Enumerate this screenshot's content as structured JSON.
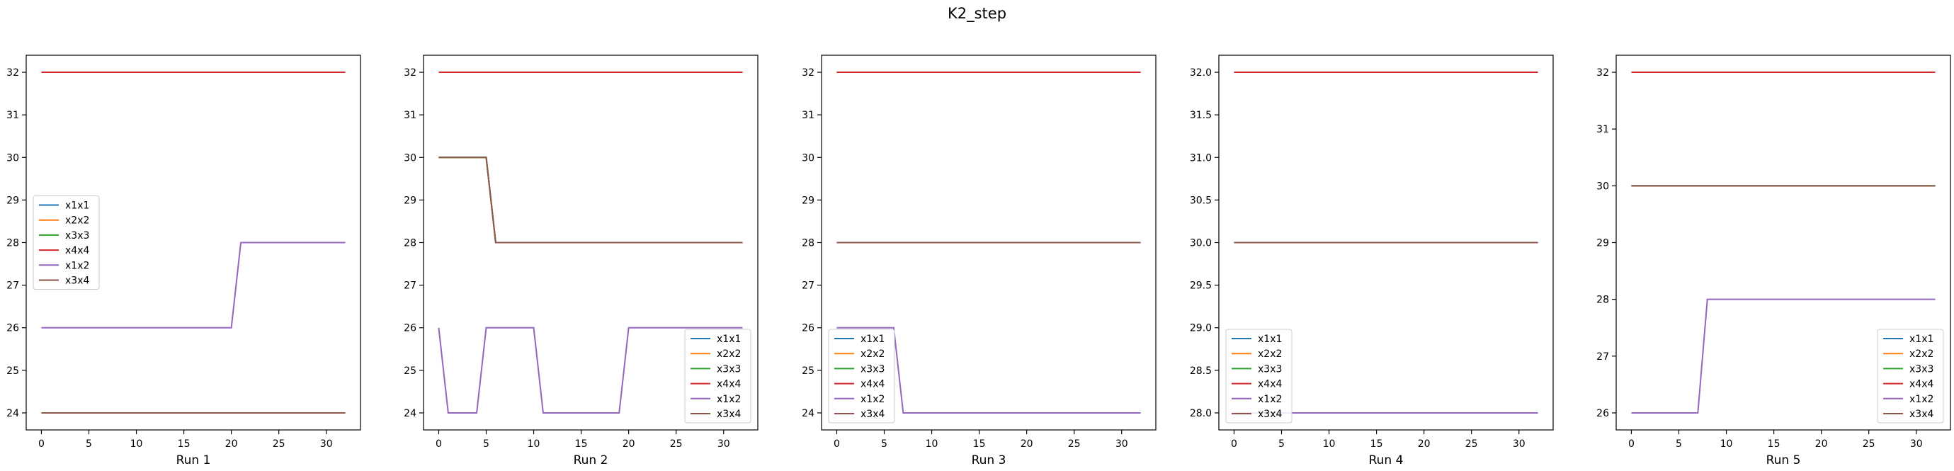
{
  "figure_title": "K2_step",
  "chart_data": [
    {
      "type": "line",
      "xlabel": "Run 1",
      "xlim": [
        -1.6,
        33.6
      ],
      "ylim": [
        23.6,
        32.4
      ],
      "xticks": [
        0,
        5,
        10,
        15,
        20,
        25,
        30
      ],
      "yticks": [
        24,
        25,
        26,
        27,
        28,
        29,
        30,
        31,
        32
      ],
      "ytick_labels": [
        "24",
        "25",
        "26",
        "27",
        "28",
        "29",
        "30",
        "31",
        "32"
      ],
      "legend": "center-left",
      "series": [
        {
          "name": "x1x1",
          "color": "#1f77b4",
          "points": [
            [
              0,
              24
            ],
            [
              32,
              24
            ]
          ]
        },
        {
          "name": "x2x2",
          "color": "#ff7f0e",
          "points": [
            [
              0,
              24
            ],
            [
              32,
              24
            ]
          ]
        },
        {
          "name": "x3x3",
          "color": "#2ca02c",
          "points": [
            [
              0,
              24
            ],
            [
              32,
              24
            ]
          ]
        },
        {
          "name": "x4x4",
          "color": "#d62728",
          "points": [
            [
              0,
              32
            ],
            [
              32,
              32
            ]
          ]
        },
        {
          "name": "x1x2",
          "color": "#9467bd",
          "points": [
            [
              0,
              26
            ],
            [
              20,
              26
            ],
            [
              21,
              28
            ],
            [
              32,
              28
            ]
          ]
        },
        {
          "name": "x3x4",
          "color": "#8c564b",
          "points": [
            [
              0,
              24
            ],
            [
              32,
              24
            ]
          ]
        }
      ]
    },
    {
      "type": "line",
      "xlabel": "Run 2",
      "xlim": [
        -1.6,
        33.6
      ],
      "ylim": [
        23.6,
        32.4
      ],
      "xticks": [
        0,
        5,
        10,
        15,
        20,
        25,
        30
      ],
      "yticks": [
        24,
        25,
        26,
        27,
        28,
        29,
        30,
        31,
        32
      ],
      "ytick_labels": [
        "24",
        "25",
        "26",
        "27",
        "28",
        "29",
        "30",
        "31",
        "32"
      ],
      "legend": "lower-right",
      "series": [
        {
          "name": "x1x1",
          "color": "#1f77b4",
          "points": [
            [
              0,
              30
            ],
            [
              5,
              30
            ],
            [
              6,
              28
            ],
            [
              32,
              28
            ]
          ]
        },
        {
          "name": "x2x2",
          "color": "#ff7f0e",
          "points": [
            [
              0,
              30
            ],
            [
              5,
              30
            ],
            [
              6,
              28
            ],
            [
              32,
              28
            ]
          ]
        },
        {
          "name": "x3x3",
          "color": "#2ca02c",
          "points": [
            [
              0,
              30
            ],
            [
              5,
              30
            ],
            [
              6,
              28
            ],
            [
              32,
              28
            ]
          ]
        },
        {
          "name": "x4x4",
          "color": "#d62728",
          "points": [
            [
              0,
              32
            ],
            [
              32,
              32
            ]
          ]
        },
        {
          "name": "x1x2",
          "color": "#9467bd",
          "points": [
            [
              0,
              26
            ],
            [
              1,
              24
            ],
            [
              4,
              24
            ],
            [
              5,
              26
            ],
            [
              10,
              26
            ],
            [
              11,
              24
            ],
            [
              19,
              24
            ],
            [
              20,
              26
            ],
            [
              32,
              26
            ]
          ]
        },
        {
          "name": "x3x4",
          "color": "#8c564b",
          "points": [
            [
              0,
              30
            ],
            [
              5,
              30
            ],
            [
              6,
              28
            ],
            [
              32,
              28
            ]
          ]
        }
      ]
    },
    {
      "type": "line",
      "xlabel": "Run 3",
      "xlim": [
        -1.6,
        33.6
      ],
      "ylim": [
        23.6,
        32.4
      ],
      "xticks": [
        0,
        5,
        10,
        15,
        20,
        25,
        30
      ],
      "yticks": [
        24,
        25,
        26,
        27,
        28,
        29,
        30,
        31,
        32
      ],
      "ytick_labels": [
        "24",
        "25",
        "26",
        "27",
        "28",
        "29",
        "30",
        "31",
        "32"
      ],
      "legend": "lower-left",
      "series": [
        {
          "name": "x1x1",
          "color": "#1f77b4",
          "points": [
            [
              0,
              28
            ],
            [
              32,
              28
            ]
          ]
        },
        {
          "name": "x2x2",
          "color": "#ff7f0e",
          "points": [
            [
              0,
              28
            ],
            [
              32,
              28
            ]
          ]
        },
        {
          "name": "x3x3",
          "color": "#2ca02c",
          "points": [
            [
              0,
              28
            ],
            [
              32,
              28
            ]
          ]
        },
        {
          "name": "x4x4",
          "color": "#d62728",
          "points": [
            [
              0,
              32
            ],
            [
              32,
              32
            ]
          ]
        },
        {
          "name": "x1x2",
          "color": "#9467bd",
          "points": [
            [
              0,
              26
            ],
            [
              6,
              26
            ],
            [
              7,
              24
            ],
            [
              32,
              24
            ]
          ]
        },
        {
          "name": "x3x4",
          "color": "#8c564b",
          "points": [
            [
              0,
              28
            ],
            [
              32,
              28
            ]
          ]
        }
      ]
    },
    {
      "type": "line",
      "xlabel": "Run 4",
      "xlim": [
        -1.6,
        33.6
      ],
      "ylim": [
        27.8,
        32.2
      ],
      "xticks": [
        0,
        5,
        10,
        15,
        20,
        25,
        30
      ],
      "yticks": [
        28.0,
        28.5,
        29.0,
        29.5,
        30.0,
        30.5,
        31.0,
        31.5,
        32.0
      ],
      "ytick_labels": [
        "28.0",
        "28.5",
        "29.0",
        "29.5",
        "30.0",
        "30.5",
        "31.0",
        "31.5",
        "32.0"
      ],
      "legend": "lower-left",
      "series": [
        {
          "name": "x1x1",
          "color": "#1f77b4",
          "points": [
            [
              0,
              30
            ],
            [
              32,
              30
            ]
          ]
        },
        {
          "name": "x2x2",
          "color": "#ff7f0e",
          "points": [
            [
              0,
              30
            ],
            [
              32,
              30
            ]
          ]
        },
        {
          "name": "x3x3",
          "color": "#2ca02c",
          "points": [
            [
              0,
              30
            ],
            [
              32,
              30
            ]
          ]
        },
        {
          "name": "x4x4",
          "color": "#d62728",
          "points": [
            [
              0,
              32
            ],
            [
              32,
              32
            ]
          ]
        },
        {
          "name": "x1x2",
          "color": "#9467bd",
          "points": [
            [
              0,
              28
            ],
            [
              32,
              28
            ]
          ]
        },
        {
          "name": "x3x4",
          "color": "#8c564b",
          "points": [
            [
              0,
              30
            ],
            [
              32,
              30
            ]
          ]
        }
      ]
    },
    {
      "type": "line",
      "xlabel": "Run 5",
      "xlim": [
        -1.6,
        33.6
      ],
      "ylim": [
        25.7,
        32.3
      ],
      "xticks": [
        0,
        5,
        10,
        15,
        20,
        25,
        30
      ],
      "yticks": [
        26,
        27,
        28,
        29,
        30,
        31,
        32
      ],
      "ytick_labels": [
        "26",
        "27",
        "28",
        "29",
        "30",
        "31",
        "32"
      ],
      "legend": "lower-right",
      "series": [
        {
          "name": "x1x1",
          "color": "#1f77b4",
          "points": [
            [
              0,
              30
            ],
            [
              32,
              30
            ]
          ]
        },
        {
          "name": "x2x2",
          "color": "#ff7f0e",
          "points": [
            [
              0,
              30
            ],
            [
              32,
              30
            ]
          ]
        },
        {
          "name": "x3x3",
          "color": "#2ca02c",
          "points": [
            [
              0,
              30
            ],
            [
              32,
              30
            ]
          ]
        },
        {
          "name": "x4x4",
          "color": "#d62728",
          "points": [
            [
              0,
              32
            ],
            [
              32,
              32
            ]
          ]
        },
        {
          "name": "x1x2",
          "color": "#9467bd",
          "points": [
            [
              0,
              26
            ],
            [
              7,
              26
            ],
            [
              8,
              28
            ],
            [
              32,
              28
            ]
          ]
        },
        {
          "name": "x3x4",
          "color": "#8c564b",
          "points": [
            [
              0,
              30
            ],
            [
              32,
              30
            ]
          ]
        }
      ]
    }
  ]
}
